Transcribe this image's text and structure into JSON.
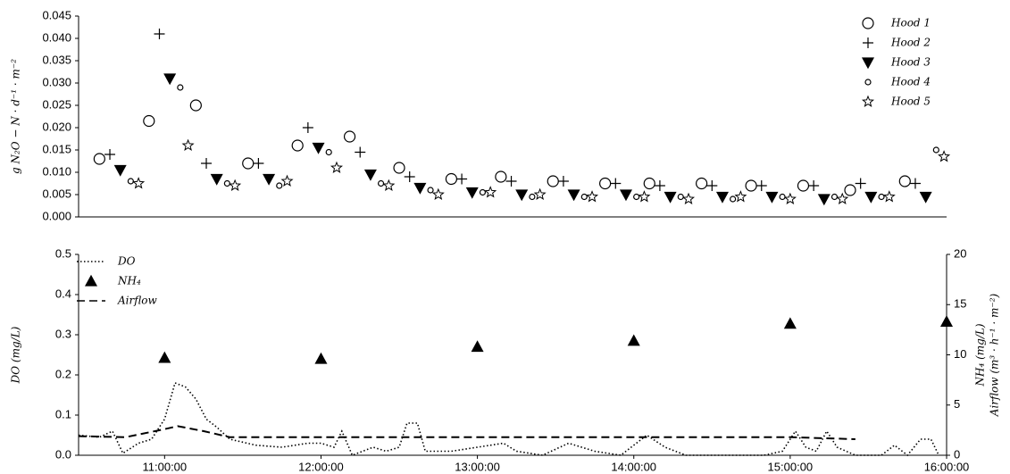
{
  "chart_data": [
    {
      "type": "scatter",
      "y_label": "g N₂O − N · d⁻¹ · m⁻²",
      "xlim": [
        "10:27:00",
        "16:00:00"
      ],
      "ylim": [
        0,
        0.045
      ],
      "yticks": [
        {
          "value": 0,
          "label": "0.000"
        },
        {
          "value": 0.005,
          "label": "0.005"
        },
        {
          "value": 0.01,
          "label": "0.010"
        },
        {
          "value": 0.015,
          "label": "0.015"
        },
        {
          "value": 0.02,
          "label": "0.020"
        },
        {
          "value": 0.025,
          "label": "0.025"
        },
        {
          "value": 0.03,
          "label": "0.030"
        },
        {
          "value": 0.035,
          "label": "0.035"
        },
        {
          "value": 0.04,
          "label": "0.040"
        },
        {
          "value": 0.045,
          "label": "0.045"
        }
      ],
      "legend": "upper right",
      "series": [
        {
          "name": "Hood 1",
          "marker": "circle-large",
          "color": "#000000",
          "x": [
            "10:35:00",
            "10:54:00",
            "11:12:00",
            "11:32:00",
            "11:51:00",
            "12:11:00",
            "12:30:00",
            "12:50:00",
            "13:09:00",
            "13:29:00",
            "13:49:00",
            "14:06:00",
            "14:26:00",
            "14:45:00",
            "15:05:00",
            "15:23:00",
            "15:44:00"
          ],
          "values": [
            0.013,
            0.0215,
            0.025,
            0.012,
            0.016,
            0.018,
            0.011,
            0.0085,
            0.009,
            0.008,
            0.0075,
            0.0075,
            0.0075,
            0.007,
            0.007,
            0.006,
            0.008
          ]
        },
        {
          "name": "Hood 2",
          "marker": "plus",
          "color": "#000000",
          "x": [
            "10:39:00",
            "10:58:00",
            "11:16:00",
            "11:36:00",
            "11:55:00",
            "12:15:00",
            "12:34:00",
            "12:54:00",
            "13:13:00",
            "13:33:00",
            "13:53:00",
            "14:10:00",
            "14:30:00",
            "14:49:00",
            "15:09:00",
            "15:27:00",
            "15:48:00"
          ],
          "values": [
            0.014,
            0.041,
            0.012,
            0.012,
            0.02,
            0.0145,
            0.009,
            0.0085,
            0.008,
            0.008,
            0.0075,
            0.007,
            0.007,
            0.007,
            0.007,
            0.0075,
            0.0075
          ]
        },
        {
          "name": "Hood 3",
          "marker": "triangle-down",
          "color": "#000000",
          "x": [
            "10:43:00",
            "11:02:00",
            "11:20:00",
            "11:40:00",
            "11:59:00",
            "12:19:00",
            "12:38:00",
            "12:58:00",
            "13:17:00",
            "13:37:00",
            "13:57:00",
            "14:14:00",
            "14:34:00",
            "14:53:00",
            "15:13:00",
            "15:31:00",
            "15:52:00"
          ],
          "values": [
            0.0105,
            0.031,
            0.0085,
            0.0085,
            0.0155,
            0.0095,
            0.0065,
            0.0055,
            0.005,
            0.005,
            0.005,
            0.0045,
            0.0045,
            0.0045,
            0.004,
            0.0045,
            0.0045
          ]
        },
        {
          "name": "Hood 4",
          "marker": "circle-small",
          "color": "#000000",
          "x": [
            "10:47:00",
            "11:06:00",
            "11:24:00",
            "11:44:00",
            "12:03:00",
            "12:23:00",
            "12:42:00",
            "13:02:00",
            "13:21:00",
            "13:41:00",
            "14:01:00",
            "14:18:00",
            "14:38:00",
            "14:57:00",
            "15:17:00",
            "15:35:00",
            "15:56:00"
          ],
          "values": [
            0.008,
            0.029,
            0.0075,
            0.007,
            0.0145,
            0.0075,
            0.006,
            0.0055,
            0.0045,
            0.0045,
            0.0045,
            0.0045,
            0.004,
            0.0045,
            0.0045,
            0.0045,
            0.015
          ]
        },
        {
          "name": "Hood 5",
          "marker": "star",
          "color": "#000000",
          "x": [
            "10:50:00",
            "11:09:00",
            "11:27:00",
            "11:47:00",
            "12:06:00",
            "12:26:00",
            "12:45:00",
            "13:05:00",
            "13:24:00",
            "13:44:00",
            "14:04:00",
            "14:21:00",
            "14:41:00",
            "15:00:00",
            "15:20:00",
            "15:38:00",
            "15:59:00"
          ],
          "values": [
            0.0075,
            0.016,
            0.007,
            0.008,
            0.011,
            0.007,
            0.005,
            0.0055,
            0.005,
            0.0045,
            0.0045,
            0.004,
            0.0045,
            0.004,
            0.004,
            0.0045,
            0.0135
          ]
        }
      ]
    },
    {
      "type": "line",
      "y_label": "DO (mg/L)",
      "y2_label": [
        "NH₄ (mg/L)",
        "Airflow (m³ · h⁻¹ · m⁻²)"
      ],
      "xlim": [
        "10:27:00",
        "16:00:00"
      ],
      "xticks": [
        "11:00:00",
        "12:00:00",
        "13:00:00",
        "14:00:00",
        "15:00:00",
        "16:00:00"
      ],
      "ylim": [
        0,
        0.5
      ],
      "yticks": [
        {
          "value": 0,
          "label": "0.0"
        },
        0.1,
        0.2,
        0.3,
        0.4,
        0.5
      ],
      "y2lim": [
        0,
        20
      ],
      "y2ticks": [
        0,
        5,
        10,
        15,
        20
      ],
      "legend": "upper left",
      "series": [
        {
          "name": "DO",
          "style": "dotted",
          "color": "#000000",
          "x": [
            "10:27:00",
            "10:35:00",
            "10:40:00",
            "10:44:00",
            "10:50:00",
            "10:55:00",
            "11:00:00",
            "11:04:00",
            "11:08:00",
            "11:12:00",
            "11:16:00",
            "11:20:00",
            "11:25:00",
            "11:35:00",
            "11:45:00",
            "11:55:00",
            "12:00:00",
            "12:05:00",
            "12:08:00",
            "12:12:00",
            "12:20:00",
            "12:25:00",
            "12:30:00",
            "12:33:00",
            "12:37:00",
            "12:40:00",
            "12:50:00",
            "13:00:00",
            "13:10:00",
            "13:15:00",
            "13:25:00",
            "13:35:00",
            "13:45:00",
            "13:55:00",
            "14:05:00",
            "14:12:00",
            "14:20:00",
            "14:35:00",
            "14:50:00",
            "14:57:00",
            "15:02:00",
            "15:06:00",
            "15:10:00",
            "15:14:00",
            "15:18:00",
            "15:25:00",
            "15:35:00",
            "15:40:00",
            "15:45:00",
            "15:50:00",
            "15:54:00",
            "15:57:00"
          ],
          "values": [
            0.05,
            0.045,
            0.06,
            0.005,
            0.03,
            0.04,
            0.09,
            0.18,
            0.17,
            0.14,
            0.09,
            0.07,
            0.04,
            0.025,
            0.02,
            0.03,
            0.03,
            0.02,
            0.06,
            0.0,
            0.02,
            0.01,
            0.02,
            0.08,
            0.08,
            0.01,
            0.01,
            0.02,
            0.03,
            0.01,
            0.0,
            0.03,
            0.01,
            0.0,
            0.05,
            0.02,
            0.0,
            0.0,
            0.0,
            0.01,
            0.06,
            0.02,
            0.01,
            0.06,
            0.02,
            0.0,
            0.0,
            0.025,
            0.0,
            0.04,
            0.04,
            0.0
          ]
        },
        {
          "name": "NH₄",
          "style": "triangle-up",
          "axis": "y2",
          "color": "#000000",
          "x": [
            "11:00:00",
            "12:00:00",
            "13:00:00",
            "14:00:00",
            "15:00:00",
            "16:00:00"
          ],
          "values": [
            9.7,
            9.6,
            10.8,
            11.4,
            13.1,
            13.3
          ]
        },
        {
          "name": "Airflow",
          "style": "dashed",
          "axis": "y2",
          "color": "#000000",
          "x": [
            "10:27:00",
            "10:45:00",
            "11:00:00",
            "11:05:00",
            "11:15:00",
            "11:25:00",
            "12:00:00",
            "13:00:00",
            "14:00:00",
            "15:00:00",
            "15:25:00"
          ],
          "values": [
            1.9,
            1.8,
            2.6,
            2.9,
            2.4,
            1.8,
            1.8,
            1.8,
            1.8,
            1.8,
            1.6
          ]
        }
      ]
    }
  ]
}
